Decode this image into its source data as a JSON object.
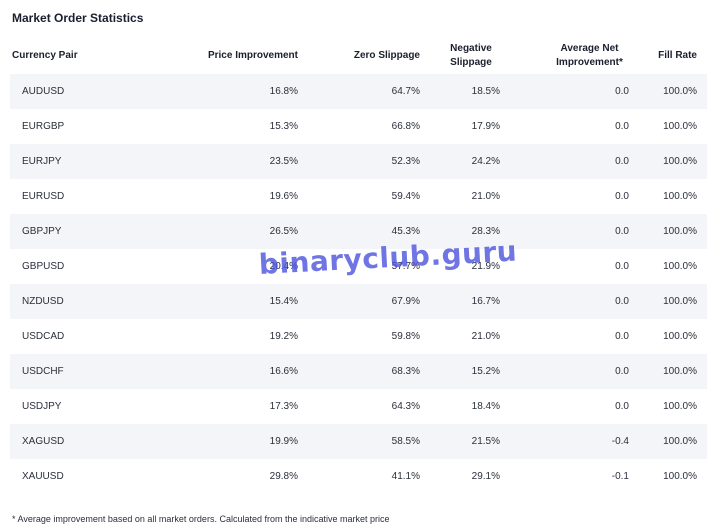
{
  "title": "Market Order Statistics",
  "headers": {
    "pair": "Currency Pair",
    "price_improvement": "Price Improvement",
    "zero_slippage": "Zero Slippage",
    "negative_slippage_line1": "Negative",
    "negative_slippage_line2": "Slippage",
    "avg_net_line1": "Average Net",
    "avg_net_line2": "Improvement*",
    "fill_rate": "Fill Rate"
  },
  "rows": [
    {
      "pair": "AUDUSD",
      "pi": "16.8%",
      "zs": "64.7%",
      "ns": "18.5%",
      "ani": "0.0",
      "fr": "100.0%"
    },
    {
      "pair": "EURGBP",
      "pi": "15.3%",
      "zs": "66.8%",
      "ns": "17.9%",
      "ani": "0.0",
      "fr": "100.0%"
    },
    {
      "pair": "EURJPY",
      "pi": "23.5%",
      "zs": "52.3%",
      "ns": "24.2%",
      "ani": "0.0",
      "fr": "100.0%"
    },
    {
      "pair": "EURUSD",
      "pi": "19.6%",
      "zs": "59.4%",
      "ns": "21.0%",
      "ani": "0.0",
      "fr": "100.0%"
    },
    {
      "pair": "GBPJPY",
      "pi": "26.5%",
      "zs": "45.3%",
      "ns": "28.3%",
      "ani": "0.0",
      "fr": "100.0%"
    },
    {
      "pair": "GBPUSD",
      "pi": "20.4%",
      "zs": "57.7%",
      "ns": "21.9%",
      "ani": "0.0",
      "fr": "100.0%"
    },
    {
      "pair": "NZDUSD",
      "pi": "15.4%",
      "zs": "67.9%",
      "ns": "16.7%",
      "ani": "0.0",
      "fr": "100.0%"
    },
    {
      "pair": "USDCAD",
      "pi": "19.2%",
      "zs": "59.8%",
      "ns": "21.0%",
      "ani": "0.0",
      "fr": "100.0%"
    },
    {
      "pair": "USDCHF",
      "pi": "16.6%",
      "zs": "68.3%",
      "ns": "15.2%",
      "ani": "0.0",
      "fr": "100.0%"
    },
    {
      "pair": "USDJPY",
      "pi": "17.3%",
      "zs": "64.3%",
      "ns": "18.4%",
      "ani": "0.0",
      "fr": "100.0%"
    },
    {
      "pair": "XAGUSD",
      "pi": "19.9%",
      "zs": "58.5%",
      "ns": "21.5%",
      "ani": "-0.4",
      "fr": "100.0%"
    },
    {
      "pair": "XAUUSD",
      "pi": "29.8%",
      "zs": "41.1%",
      "ns": "29.1%",
      "ani": "-0.1",
      "fr": "100.0%"
    }
  ],
  "footnote": "* Average improvement based on all market orders. Calculated from the indicative market price",
  "watermark": "binaryclub.guru"
}
